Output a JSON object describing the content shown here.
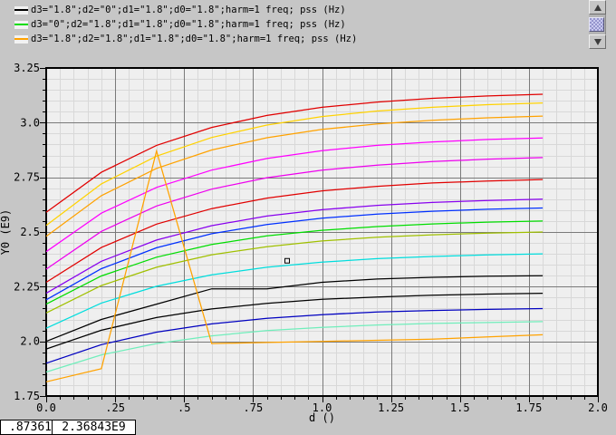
{
  "window": {
    "bg": "#c6c6c6"
  },
  "legend": {
    "entries": [
      {
        "color": "#000000",
        "label": "d3=\"1.8\";d2=\"0\";d1=\"1.8\";d0=\"1.8\";harm=1 freq; pss (Hz)"
      },
      {
        "color": "#00dd00",
        "label": "d3=\"0\";d2=\"1.8\";d1=\"1.8\";d0=\"1.8\";harm=1 freq; pss (Hz)"
      },
      {
        "color": "#ffa200",
        "label": "d3=\"1.8\";d2=\"1.8\";d1=\"1.8\";d0=\"1.8\";harm=1 freq; pss (Hz)"
      }
    ]
  },
  "status_bar": {
    "x_value": ".87361",
    "y_value": "2.36843E9"
  },
  "chart_data": {
    "type": "line",
    "xlabel": "d ()",
    "ylabel": "Y0 (E9)",
    "xlim": [
      0,
      2.0
    ],
    "ylim": [
      1.75,
      3.25
    ],
    "grid": {
      "minor_step": 0.05,
      "major_step": 0.25,
      "bg": "#efefef",
      "minor_color": "#d8d8d8",
      "major_color": "#7a7a7a",
      "border_color": "#000000"
    },
    "x_ticks": {
      "values": [
        0,
        0.25,
        0.5,
        0.75,
        1.0,
        1.25,
        1.5,
        1.75,
        2.0
      ],
      "labels": [
        "0.0",
        ".25",
        ".5",
        ".75",
        "1.0",
        "1.25",
        "1.5",
        "1.75",
        "2.0"
      ]
    },
    "y_ticks": {
      "values": [
        3.25,
        3.0,
        2.75,
        2.5,
        2.25,
        2.0,
        1.75
      ],
      "labels": [
        "3.25",
        "3.0",
        "2.75",
        "2.5",
        "2.25",
        "2.0",
        "1.75"
      ]
    },
    "x": [
      0,
      0.2,
      0.4,
      0.6,
      0.8,
      1.0,
      1.2,
      1.4,
      1.6,
      1.8
    ],
    "series": [
      {
        "color": "#e10000",
        "values": [
          2.59,
          2.773,
          2.896,
          2.978,
          3.033,
          3.07,
          3.094,
          3.111,
          3.122,
          3.13
        ]
      },
      {
        "color": "#ffd200",
        "values": [
          2.53,
          2.72,
          2.847,
          2.932,
          2.989,
          3.028,
          3.053,
          3.07,
          3.082,
          3.09
        ]
      },
      {
        "color": "#ffa200",
        "values": [
          2.48,
          2.666,
          2.791,
          2.875,
          2.931,
          2.969,
          2.994,
          3.011,
          3.022,
          3.03
        ]
      },
      {
        "color": "#ff00ff",
        "values": [
          2.41,
          2.586,
          2.704,
          2.783,
          2.836,
          2.872,
          2.896,
          2.912,
          2.923,
          2.93
        ]
      },
      {
        "color": "#ee00ee",
        "values": [
          2.33,
          2.503,
          2.619,
          2.696,
          2.748,
          2.783,
          2.806,
          2.822,
          2.833,
          2.84
        ]
      },
      {
        "color": "#e10000",
        "values": [
          2.27,
          2.429,
          2.536,
          2.607,
          2.655,
          2.688,
          2.709,
          2.724,
          2.733,
          2.74
        ]
      },
      {
        "color": "#8800ee",
        "values": [
          2.22,
          2.366,
          2.463,
          2.529,
          2.573,
          2.602,
          2.622,
          2.635,
          2.644,
          2.65
        ]
      },
      {
        "color": "#0030ff",
        "values": [
          2.19,
          2.332,
          2.428,
          2.492,
          2.534,
          2.563,
          2.582,
          2.595,
          2.604,
          2.61
        ]
      },
      {
        "color": "#00dd00",
        "values": [
          2.17,
          2.299,
          2.385,
          2.443,
          2.482,
          2.508,
          2.525,
          2.537,
          2.545,
          2.55
        ]
      },
      {
        "color": "#a0c000",
        "values": [
          2.13,
          2.255,
          2.339,
          2.396,
          2.433,
          2.459,
          2.476,
          2.487,
          2.495,
          2.5
        ]
      },
      {
        "color": "#00dddd",
        "values": [
          2.06,
          2.175,
          2.252,
          2.304,
          2.339,
          2.362,
          2.378,
          2.388,
          2.395,
          2.4
        ]
      },
      {
        "color": "#000000",
        "values": [
          2.0,
          2.1,
          2.17,
          2.24,
          2.24,
          2.27,
          2.285,
          2.293,
          2.298,
          2.3
        ]
      },
      {
        "color": "#000000",
        "values": [
          1.965,
          2.051,
          2.109,
          2.148,
          2.174,
          2.192,
          2.203,
          2.211,
          2.216,
          2.22
        ]
      },
      {
        "color": "#0000c0",
        "values": [
          1.9,
          1.985,
          2.042,
          2.08,
          2.105,
          2.122,
          2.134,
          2.141,
          2.146,
          2.15
        ]
      },
      {
        "color": "#70eebb",
        "values": [
          1.86,
          1.938,
          1.99,
          2.025,
          2.049,
          2.064,
          2.075,
          2.082,
          2.086,
          2.09
        ]
      },
      {
        "color": "#ffa200",
        "values": [
          1.815,
          1.875,
          2.87,
          1.99,
          1.995,
          2.0,
          2.005,
          2.01,
          2.02,
          2.03
        ]
      }
    ],
    "marker": {
      "x": 0.87361,
      "y": 2.36843
    }
  }
}
